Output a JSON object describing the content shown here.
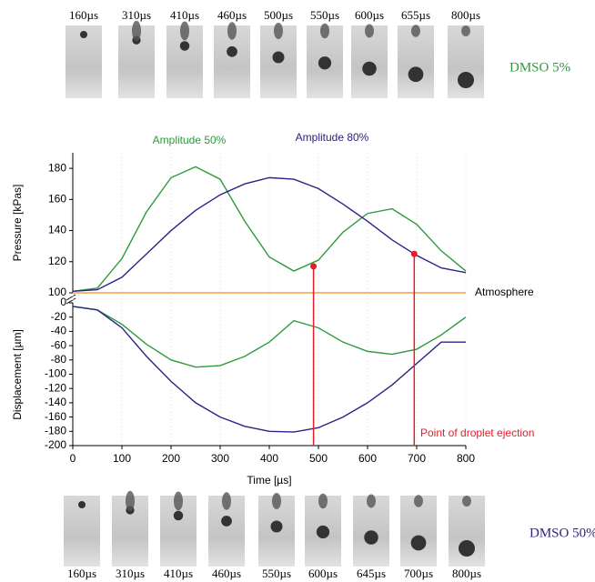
{
  "chart_data": [
    {
      "type": "line",
      "ylabel": "Pressure [kPas]",
      "annotations": [
        "Amplitude 50%",
        "Amplitude 80%"
      ],
      "x": [
        0,
        50,
        100,
        150,
        200,
        250,
        300,
        350,
        400,
        450,
        500,
        550,
        600,
        650,
        700,
        750,
        800
      ],
      "series": [
        {
          "name": "Amplitude 50%",
          "color": "#2e9a3e",
          "values": [
            101,
            103,
            122,
            152,
            174,
            181,
            173,
            146,
            123,
            114,
            121,
            139,
            151,
            154,
            144,
            127,
            114
          ]
        },
        {
          "name": "Amplitude 80%",
          "color": "#2b2385",
          "values": [
            101,
            102,
            110,
            125,
            140,
            153,
            163,
            170,
            174,
            173,
            167,
            157,
            146,
            134,
            124,
            116,
            113
          ]
        }
      ],
      "markers": {
        "label": "Point of droplet ejection",
        "color": "#e3202a",
        "x": [
          490,
          695
        ],
        "values": [
          117,
          125
        ]
      },
      "hline": {
        "value": 100,
        "label": "Atmosphere",
        "color": "#f0a04a"
      },
      "xlim": [
        0,
        800
      ],
      "ylim": [
        100,
        190
      ],
      "yticks": [
        100,
        120,
        140,
        160,
        180
      ],
      "grid": true
    },
    {
      "type": "line",
      "ylabel": "Displacement [µm]",
      "xlabel": "Time [µs]",
      "x": [
        0,
        50,
        100,
        150,
        200,
        250,
        300,
        350,
        400,
        450,
        500,
        550,
        600,
        650,
        700,
        750,
        800
      ],
      "series": [
        {
          "name": "Amplitude 50%",
          "color": "#2e9a3e",
          "values": [
            -5,
            -10,
            -30,
            -58,
            -80,
            -90,
            -88,
            -75,
            -55,
            -25,
            -35,
            -55,
            -68,
            -72,
            -65,
            -45,
            -20
          ]
        },
        {
          "name": "Amplitude 80%",
          "color": "#2b2385",
          "values": [
            -5,
            -10,
            -35,
            -75,
            -110,
            -140,
            -160,
            -173,
            -180,
            -181,
            -175,
            -160,
            -140,
            -115,
            -85,
            -55,
            -55
          ]
        }
      ],
      "xlim": [
        0,
        800
      ],
      "ylim": [
        -200,
        0
      ],
      "xticks": [
        0,
        100,
        200,
        300,
        400,
        500,
        600,
        700,
        800
      ],
      "yticks": [
        0,
        -20,
        -40,
        -60,
        -80,
        -100,
        -120,
        -140,
        -160,
        -180,
        -200
      ],
      "grid": true
    }
  ],
  "image_strips": [
    {
      "title": "DMSO 5%",
      "color": "#2e9a3e",
      "labels": [
        "160µs",
        "310µs",
        "410µs",
        "460µs",
        "500µs",
        "550µs",
        "600µs",
        "655µs",
        "800µs"
      ]
    },
    {
      "title": "DMSO 50%",
      "color": "#2b2385",
      "labels": [
        "160µs",
        "310µs",
        "410µs",
        "460µs",
        "550µs",
        "600µs",
        "645µs",
        "700µs",
        "800µs"
      ]
    }
  ]
}
